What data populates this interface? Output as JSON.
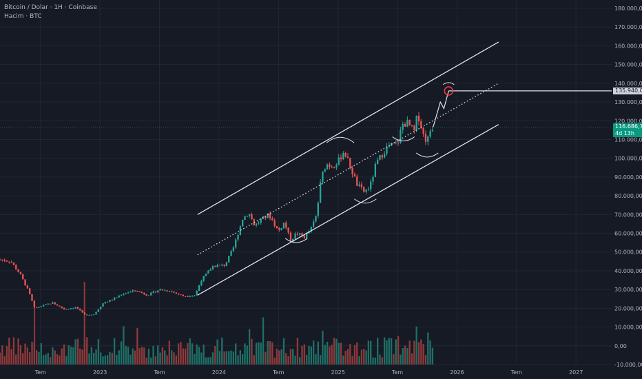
{
  "header": {
    "symbol_line": "Bitcoin / Dolar · 1H · Coinbase",
    "volume_line": "Hacim · BTC"
  },
  "colors": {
    "background": "#161a25",
    "grid": "#222633",
    "up": "#26a69a",
    "down": "#ef5350",
    "volume_up": "#1f6f66",
    "volume_down": "#8f3a3a",
    "channel": "#e0e3eb",
    "target_circle": "#f23645",
    "price_tag": "#089981",
    "target_tag": "#d1d4dc"
  },
  "price_tag": {
    "value": "116.686,73",
    "countdown": "4d 13h"
  },
  "target_tag": {
    "value": "135.940,02"
  },
  "chart_data": {
    "type": "candlestick",
    "y_axis": {
      "ticks": [
        "180.000,00",
        "170.000,00",
        "160.000,00",
        "150.000,00",
        "140.000,00",
        "130.000,00",
        "120.000,00",
        "110.000,00",
        "100.000,00",
        "90.000,00",
        "80.000,00",
        "70.000,00",
        "60.000,00",
        "50.000,00",
        "40.000,00",
        "30.000,00",
        "20.000,00",
        "10.000,00",
        "0,00",
        "-10.000,00"
      ],
      "range": [
        -10000,
        180000
      ]
    },
    "x_axis": {
      "ticks": [
        "Tem",
        "2023",
        "Tem",
        "2024",
        "Tem",
        "2025",
        "Tem",
        "2026",
        "Tem",
        "2027"
      ],
      "tick_times": [
        2022.5,
        2023.0,
        2023.5,
        2024.0,
        2024.5,
        2025.0,
        2025.5,
        2026.0,
        2026.5,
        2027.0
      ],
      "range": [
        2022.16,
        2027.3
      ]
    },
    "keypoints": [
      [
        2022.16,
        46000
      ],
      [
        2022.25,
        45000
      ],
      [
        2022.33,
        38000
      ],
      [
        2022.4,
        29000
      ],
      [
        2022.45,
        20000
      ],
      [
        2022.5,
        21000
      ],
      [
        2022.6,
        23000
      ],
      [
        2022.7,
        19500
      ],
      [
        2022.8,
        20500
      ],
      [
        2022.87,
        16500
      ],
      [
        2022.95,
        16800
      ],
      [
        2023.03,
        23000
      ],
      [
        2023.1,
        24500
      ],
      [
        2023.2,
        28000
      ],
      [
        2023.3,
        29500
      ],
      [
        2023.4,
        27000
      ],
      [
        2023.5,
        30000
      ],
      [
        2023.6,
        29000
      ],
      [
        2023.7,
        26500
      ],
      [
        2023.8,
        27000
      ],
      [
        2023.85,
        35000
      ],
      [
        2023.95,
        42500
      ],
      [
        2024.05,
        43000
      ],
      [
        2024.12,
        52000
      ],
      [
        2024.2,
        68000
      ],
      [
        2024.25,
        71000
      ],
      [
        2024.3,
        64000
      ],
      [
        2024.35,
        67000
      ],
      [
        2024.42,
        70000
      ],
      [
        2024.5,
        61000
      ],
      [
        2024.55,
        66000
      ],
      [
        2024.6,
        56000
      ],
      [
        2024.65,
        60000
      ],
      [
        2024.72,
        58000
      ],
      [
        2024.78,
        63000
      ],
      [
        2024.82,
        70000
      ],
      [
        2024.86,
        90000
      ],
      [
        2024.9,
        97000
      ],
      [
        2024.95,
        96000
      ],
      [
        2025.0,
        98000
      ],
      [
        2025.05,
        104000
      ],
      [
        2025.1,
        96000
      ],
      [
        2025.16,
        86000
      ],
      [
        2025.22,
        82000
      ],
      [
        2025.27,
        85000
      ],
      [
        2025.32,
        97000
      ],
      [
        2025.4,
        105000
      ],
      [
        2025.45,
        107000
      ],
      [
        2025.5,
        107500
      ],
      [
        2025.54,
        118000
      ],
      [
        2025.58,
        119000
      ],
      [
        2025.64,
        114000
      ],
      [
        2025.67,
        124000
      ],
      [
        2025.72,
        112000
      ],
      [
        2025.75,
        109000
      ],
      [
        2025.78,
        116000
      ],
      [
        2025.8,
        116700
      ]
    ],
    "volume_range": [
      0,
      10000
    ],
    "channel": {
      "upper": [
        [
          2023.82,
          70000
        ],
        [
          2026.35,
          162000
        ]
      ],
      "middle": [
        [
          2023.82,
          48500
        ],
        [
          2026.35,
          140000
        ]
      ],
      "lower": [
        [
          2023.82,
          27000
        ],
        [
          2026.35,
          118000
        ]
      ]
    },
    "target": {
      "date": 2025.93,
      "price": 135940
    },
    "projection": [
      [
        2025.8,
        116700
      ],
      [
        2025.86,
        130000
      ],
      [
        2025.89,
        126500
      ],
      [
        2025.93,
        135940
      ]
    ],
    "target_line": {
      "from": 2025.93,
      "to": 2027.3,
      "price": 135940
    },
    "current_price": 116686.73,
    "lows_marked": [
      2024.65,
      2025.23,
      2025.55,
      2025.75
    ],
    "highs_marked": [
      2025.02
    ]
  }
}
